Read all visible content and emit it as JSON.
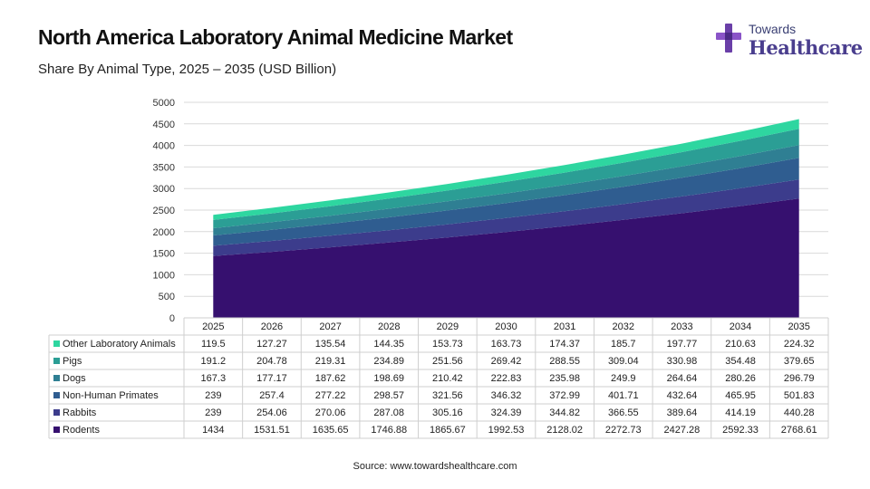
{
  "title": "North America Laboratory Animal Medicine Market",
  "subtitle": "Share By Animal Type, 2025 – 2035 (USD Billion)",
  "logo": {
    "line1": "Towards",
    "line2": "Healthcare",
    "icon": "cross-plus-icon"
  },
  "source": "Source: www.towardshealthcare.com",
  "chart_data": {
    "type": "area",
    "stacked": true,
    "categories": [
      "2025",
      "2026",
      "2027",
      "2028",
      "2029",
      "2030",
      "2031",
      "2032",
      "2033",
      "2034",
      "2035"
    ],
    "ylim": [
      0,
      5000
    ],
    "yticks": [
      0,
      500,
      1000,
      1500,
      2000,
      2500,
      3000,
      3500,
      4000,
      4500,
      5000
    ],
    "grid": true,
    "legend": "table-below",
    "series": [
      {
        "name": "Rodents",
        "color": "#36106f",
        "values": [
          "1434",
          "1531.51",
          "1635.65",
          "1746.88",
          "1865.67",
          "1992.53",
          "2128.02",
          "2272.73",
          "2427.28",
          "2592.33",
          "2768.61"
        ]
      },
      {
        "name": "Rabbits",
        "color": "#3c3c8c",
        "values": [
          "239",
          "254.06",
          "270.06",
          "287.08",
          "305.16",
          "324.39",
          "344.82",
          "366.55",
          "389.64",
          "414.19",
          "440.28"
        ]
      },
      {
        "name": "Non-Human Primates",
        "color": "#2f5d90",
        "values": [
          "239",
          "257.4",
          "277.22",
          "298.57",
          "321.56",
          "346.32",
          "372.99",
          "401.71",
          "432.64",
          "465.95",
          "501.83"
        ]
      },
      {
        "name": "Dogs",
        "color": "#2f7f93",
        "values": [
          "167.3",
          "177.17",
          "187.62",
          "198.69",
          "210.42",
          "222.83",
          "235.98",
          "249.9",
          "264.64",
          "280.26",
          "296.79"
        ]
      },
      {
        "name": "Pigs",
        "color": "#2b9e95",
        "values": [
          "191.2",
          "204.78",
          "219.31",
          "234.89",
          "251.56",
          "269.42",
          "288.55",
          "309.04",
          "330.98",
          "354.48",
          "379.65"
        ]
      },
      {
        "name": "Other Laboratory Animals",
        "color": "#2ed6a0",
        "values": [
          "119.5",
          "127.27",
          "135.54",
          "144.35",
          "153.73",
          "163.73",
          "174.37",
          "185.7",
          "197.77",
          "210.63",
          "224.32"
        ]
      }
    ]
  }
}
